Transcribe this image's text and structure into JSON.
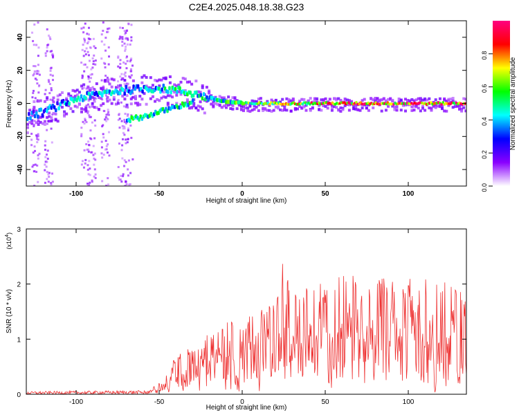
{
  "figure": {
    "title": "C2E4.2025.048.18.38.G23"
  },
  "chart_data": [
    {
      "type": "heatmap",
      "xlabel": "Height of straight line (km)",
      "ylabel": "Frequency (Hz)",
      "xlim": [
        -130,
        135
      ],
      "ylim": [
        -50,
        50
      ],
      "x_ticks": [
        -100,
        -50,
        0,
        50,
        100
      ],
      "y_ticks": [
        -40,
        -20,
        0,
        20,
        40
      ],
      "colorbar": {
        "label": "Normalized spectral amplitude",
        "range": [
          0,
          1
        ],
        "ticks": [
          0.0,
          0.2,
          0.4,
          0.6,
          0.8
        ],
        "tick_labels": [
          "0.0",
          "0.2",
          "0.4",
          "0.6",
          "0.8"
        ],
        "colormap": [
          "#ffffff",
          "#8a00ff",
          "#0000ff",
          "#00ffff",
          "#00ff00",
          "#ffff00",
          "#ff0000",
          "#ff0080"
        ]
      },
      "traces": {
        "main_line": {
          "x": [
            -130,
            -120,
            -110,
            -100,
            -90,
            -80,
            -70,
            -60,
            -50,
            -40,
            -30,
            -20,
            -10,
            0,
            50,
            135
          ],
          "frequency": [
            -8,
            -5,
            -1,
            3,
            5,
            7,
            8,
            9,
            9,
            8,
            6,
            3,
            1,
            0,
            0,
            0
          ]
        },
        "lower_branch": {
          "x": [
            -70,
            -60,
            -50,
            -40,
            -30
          ],
          "frequency": [
            -10,
            -8,
            -5,
            -2,
            1
          ]
        },
        "amplitude_profile": {
          "x": [
            -130,
            -100,
            -50,
            -20,
            0,
            25,
            50,
            100,
            135
          ],
          "amplitude": [
            0.35,
            0.45,
            0.5,
            0.55,
            0.65,
            0.75,
            0.9,
            0.95,
            0.9
          ]
        }
      },
      "grid": false
    },
    {
      "type": "line",
      "xlabel": "Height of straight line (km)",
      "ylabel": "SNR (10 * v/v)",
      "y_scale_note": "(x10",
      "y_scale_exponent": "4",
      "xlim": [
        -130,
        135
      ],
      "ylim": [
        0,
        3
      ],
      "x_ticks": [
        -100,
        -50,
        0,
        50,
        100
      ],
      "y_ticks": [
        0,
        1,
        2,
        3
      ],
      "series": [
        {
          "color": "#ee3030",
          "envelope": {
            "x": [
              -130,
              -60,
              -50,
              -45,
              -40,
              -30,
              -20,
              -10,
              0,
              10,
              20,
              25,
              30,
              40,
              50,
              60,
              70,
              80,
              90,
              100,
              110,
              120,
              125,
              135
            ],
            "y": [
              0.05,
              0.07,
              0.2,
              0.4,
              0.7,
              0.9,
              1.1,
              1.3,
              1.4,
              1.6,
              1.8,
              2.5,
              1.8,
              2.0,
              2.1,
              2.25,
              2.1,
              2.1,
              2.15,
              2.1,
              2.1,
              2.0,
              2.15,
              1.7
            ]
          }
        }
      ],
      "grid": false
    }
  ]
}
